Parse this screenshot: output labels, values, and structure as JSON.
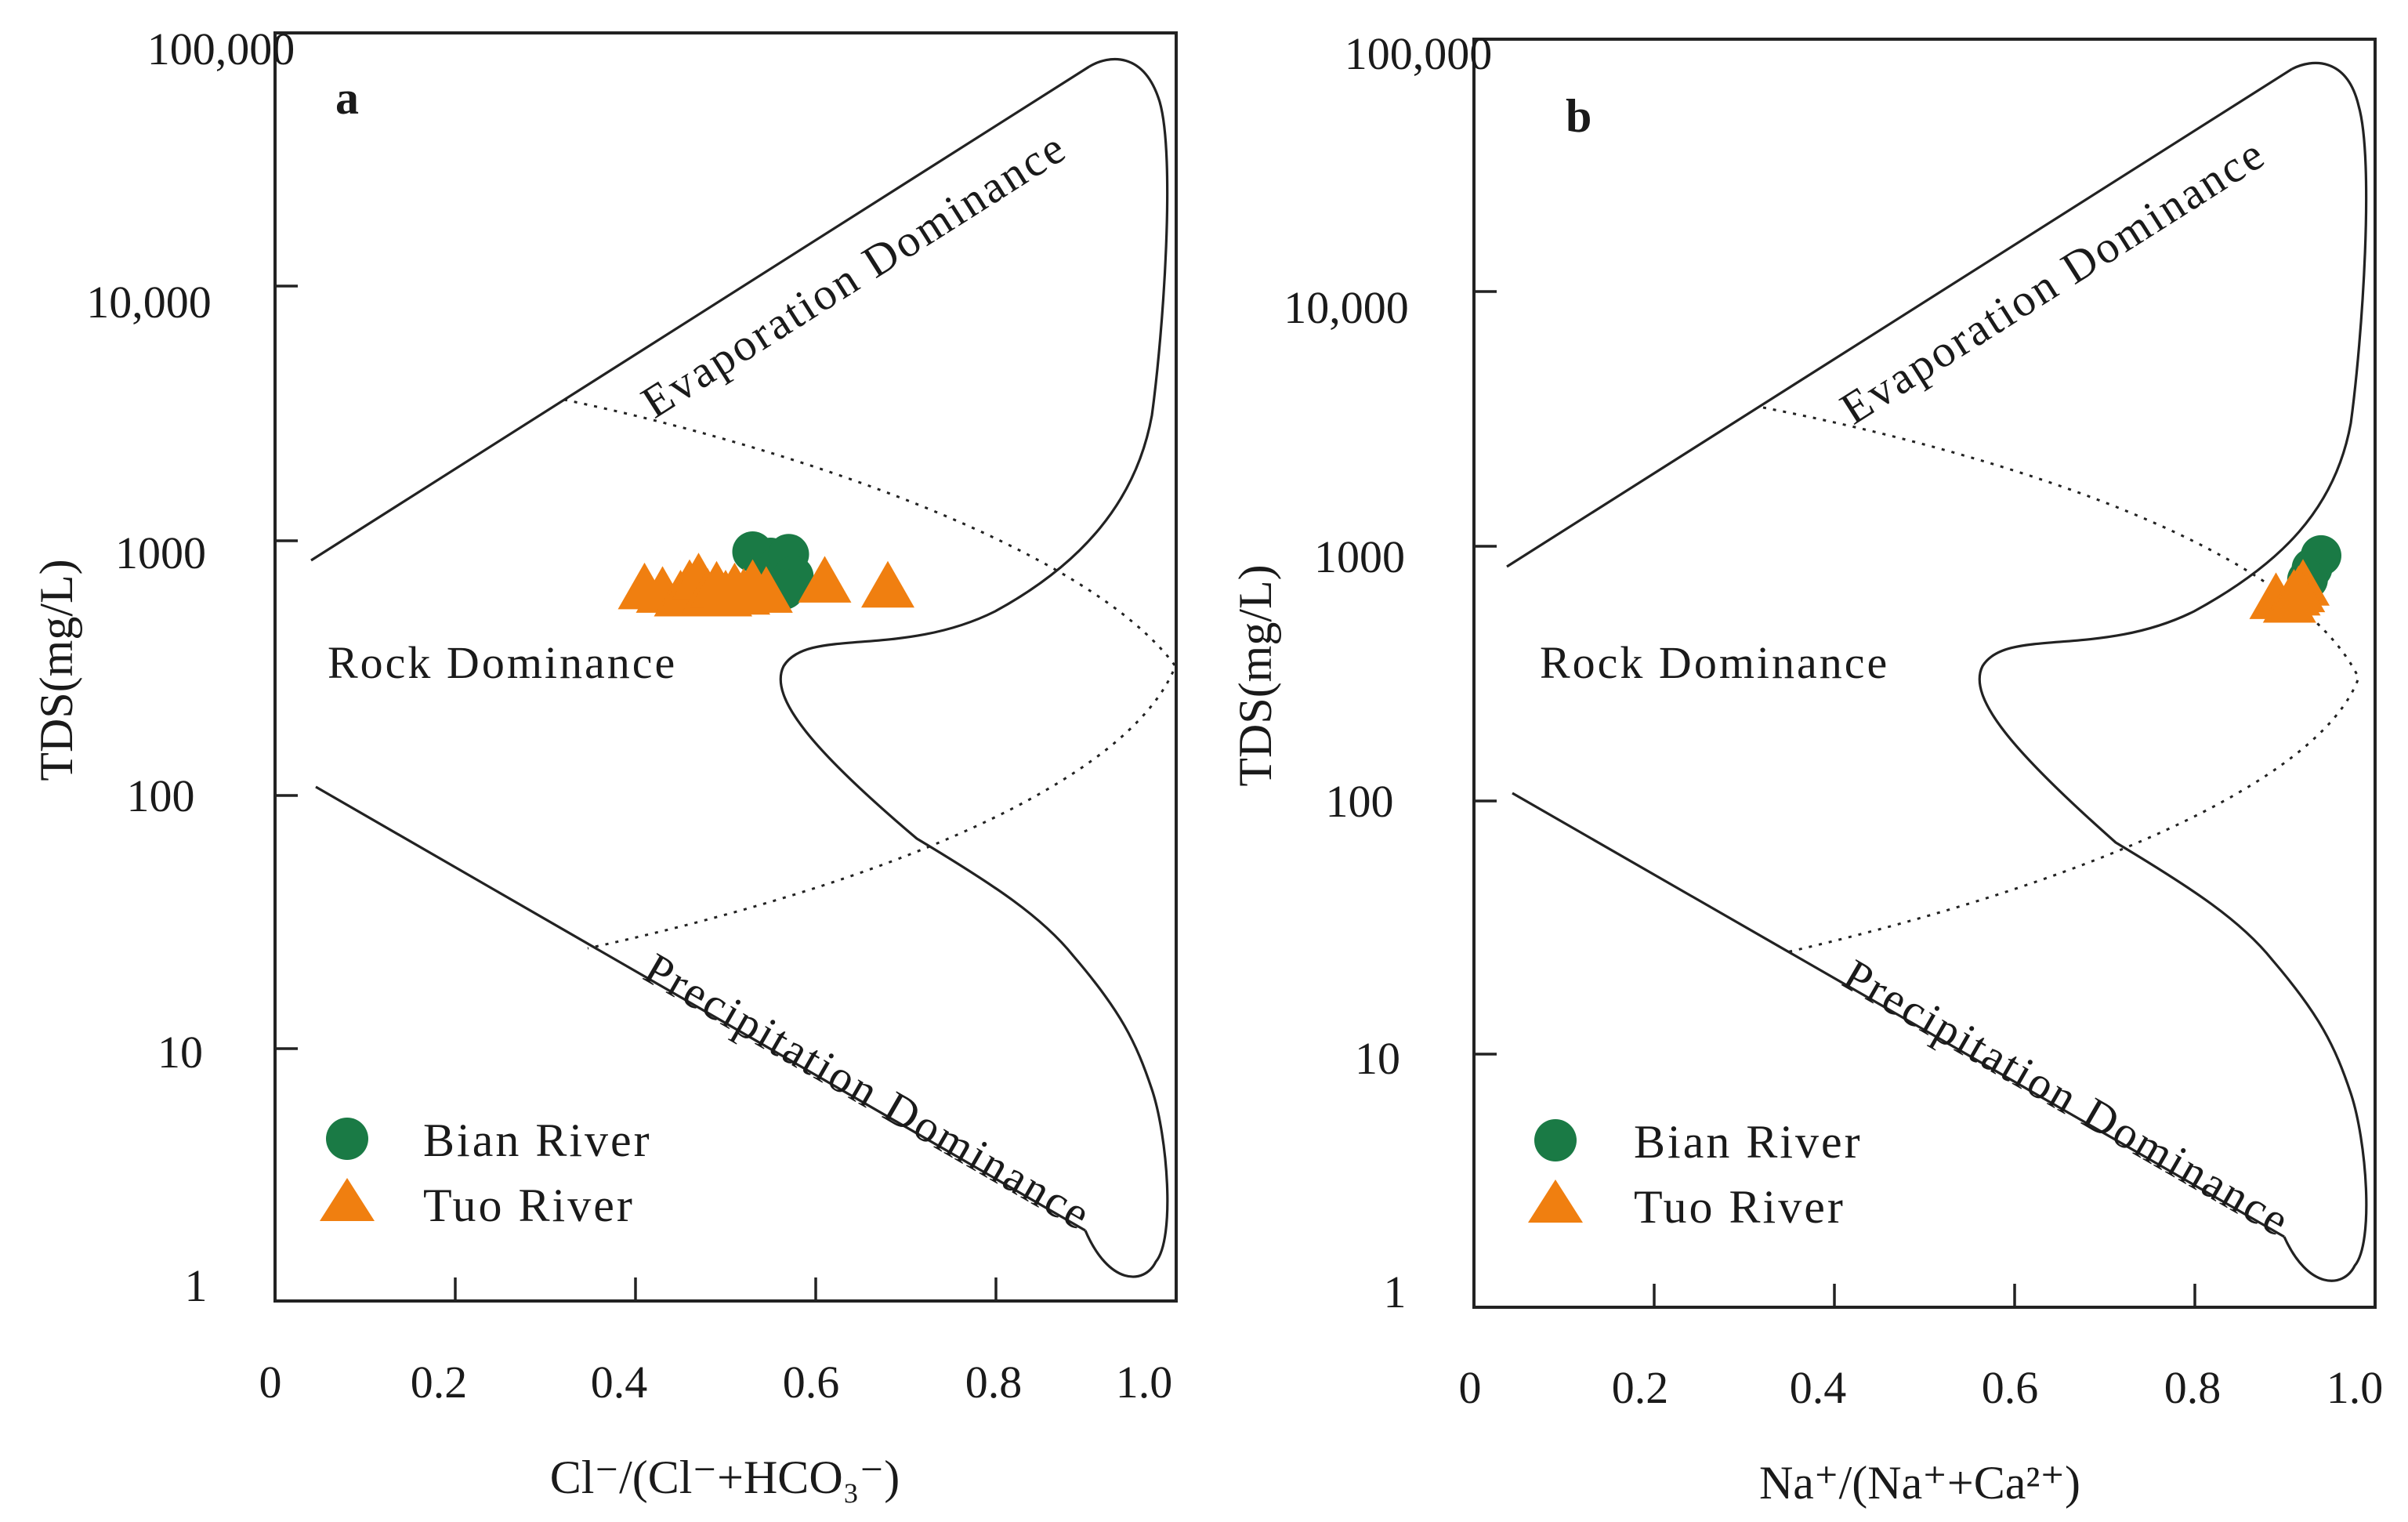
{
  "chart_data": [
    {
      "type": "scatter",
      "panel": "a",
      "xlabel": "Cl⁻/(Cl⁻+HCO₃⁻)",
      "ylabel": "TDS(mg/L)",
      "yscale": "log",
      "xlim": [
        0,
        1.0
      ],
      "ylim": [
        1,
        100000
      ],
      "x_ticks": [
        "0",
        "0.2",
        "0.4",
        "0.6",
        "0.8",
        "1.0"
      ],
      "y_ticks": [
        "1",
        "10",
        "100",
        "1000",
        "10,000",
        "100,000"
      ],
      "regions": [
        "Evaporation Dominance",
        "Rock Dominance",
        "Precipitation Dominance"
      ],
      "legend": [
        "Bian River",
        "Tuo River"
      ],
      "series": [
        {
          "name": "Bian River",
          "marker": "circle",
          "color": "#1a7a45",
          "points": [
            [
              0.53,
              900
            ],
            [
              0.55,
              850
            ],
            [
              0.56,
              800
            ],
            [
              0.57,
              880
            ],
            [
              0.575,
              720
            ],
            [
              0.565,
              640
            ]
          ]
        },
        {
          "name": "Tuo River",
          "marker": "triangle",
          "color": "#f07f10",
          "points": [
            [
              0.41,
              640
            ],
            [
              0.43,
              620
            ],
            [
              0.45,
              600
            ],
            [
              0.46,
              660
            ],
            [
              0.47,
              700
            ],
            [
              0.48,
              610
            ],
            [
              0.49,
              650
            ],
            [
              0.5,
              600
            ],
            [
              0.51,
              640
            ],
            [
              0.52,
              610
            ],
            [
              0.53,
              660
            ],
            [
              0.545,
              620
            ],
            [
              0.61,
              680
            ],
            [
              0.68,
              650
            ]
          ]
        }
      ]
    },
    {
      "type": "scatter",
      "panel": "b",
      "xlabel": "Na⁺/(Na⁺+Ca²⁺)",
      "ylabel": "TDS(mg/L)",
      "yscale": "log",
      "xlim": [
        0,
        1.0
      ],
      "ylim": [
        1,
        100000
      ],
      "x_ticks": [
        "0",
        "0.2",
        "0.4",
        "0.6",
        "0.8",
        "1.0"
      ],
      "y_ticks": [
        "1",
        "10",
        "100",
        "1000",
        "10,000",
        "100,000"
      ],
      "regions": [
        "Evaporation Dominance",
        "Rock Dominance",
        "Precipitation Dominance"
      ],
      "legend": [
        "Bian River",
        "Tuo River"
      ],
      "series": [
        {
          "name": "Bian River",
          "marker": "circle",
          "color": "#1a7a45",
          "points": [
            [
              0.94,
              920
            ],
            [
              0.93,
              820
            ],
            [
              0.925,
              740
            ]
          ]
        },
        {
          "name": "Tuo River",
          "marker": "triangle",
          "color": "#f07f10",
          "points": [
            [
              0.89,
              620
            ],
            [
              0.91,
              640
            ],
            [
              0.92,
              700
            ],
            [
              0.905,
              600
            ],
            [
              0.915,
              660
            ]
          ]
        }
      ]
    }
  ],
  "colors": {
    "bian": "#1a7a45",
    "tuo": "#f07f10"
  }
}
